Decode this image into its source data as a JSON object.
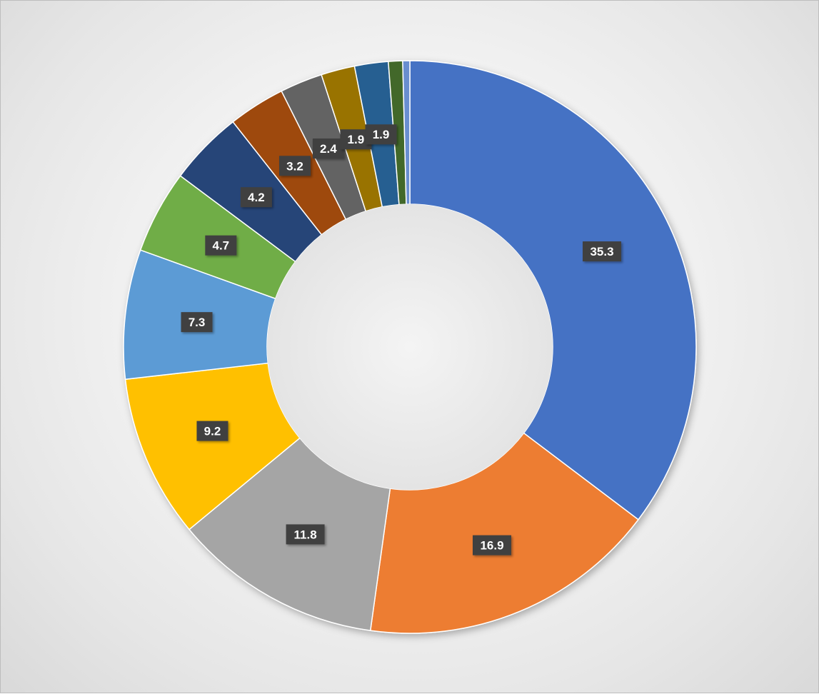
{
  "chart_data": {
    "type": "pie",
    "variant": "doughnut",
    "title": "",
    "values": [
      35.3,
      16.9,
      11.8,
      9.2,
      7.3,
      4.7,
      4.2,
      3.2,
      2.4,
      1.9,
      1.9,
      0.8,
      0.4
    ],
    "labels_shown": [
      "35.3",
      "16.9",
      "11.8",
      "9.2",
      "7.3",
      "4.7",
      "4.2",
      "3.2",
      "2.4",
      "1.9",
      "1.9",
      "",
      ""
    ],
    "colors": [
      "#4472C4",
      "#ED7D31",
      "#A5A5A5",
      "#FFC000",
      "#5B9BD5",
      "#70AD47",
      "#264478",
      "#9E480E",
      "#636363",
      "#997300",
      "#255E91",
      "#43682B",
      "#698ED0"
    ],
    "start": "12 o'clock",
    "direction": "clockwise",
    "legend": "none",
    "data_label_style": {
      "background": "#404040",
      "text_color": "#ffffff"
    }
  }
}
